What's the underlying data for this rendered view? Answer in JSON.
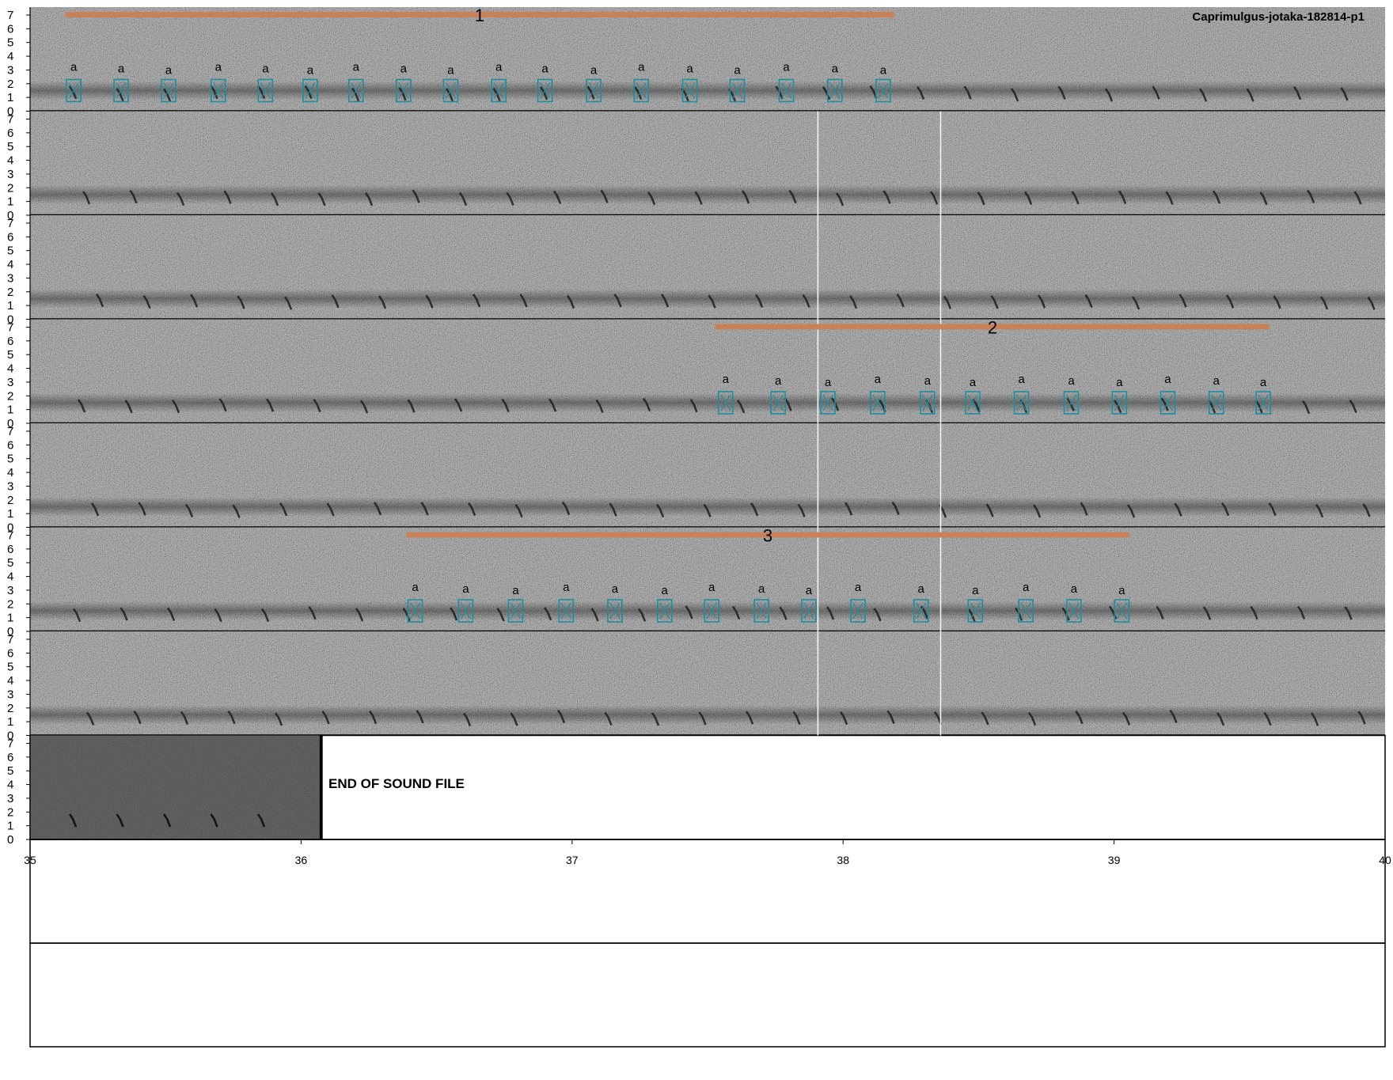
{
  "title": "Caprimulgus-jotaka-182814-p1",
  "end_label": "END OF SOUND FILE",
  "colors": {
    "sequence_bar": "#c98257",
    "syllable_box": "#1b8ea0",
    "cursor_line": "#f2f2f2",
    "spectrogram_bg": "#8c8c8c"
  },
  "frequency_ticks": [
    "0",
    "1",
    "2",
    "3",
    "4",
    "5",
    "6",
    "7"
  ],
  "time_ticks": [
    "35",
    "36",
    "37",
    "38",
    "39",
    "40"
  ],
  "annotations": [
    {
      "row": 0,
      "sequence": "1",
      "start": 0.0258,
      "end": 0.6378,
      "syllables": [
        {
          "label": "a",
          "t": 0.0322
        },
        {
          "label": "a",
          "t": 0.0672
        },
        {
          "label": "a",
          "t": 0.1022
        },
        {
          "label": "a",
          "t": 0.1389
        },
        {
          "label": "a",
          "t": 0.1737
        },
        {
          "label": "a",
          "t": 0.2067
        },
        {
          "label": "a",
          "t": 0.2405
        },
        {
          "label": "a",
          "t": 0.2756
        },
        {
          "label": "a",
          "t": 0.3104
        },
        {
          "label": "a",
          "t": 0.3459
        },
        {
          "label": "a",
          "t": 0.38
        },
        {
          "label": "a",
          "t": 0.4159
        },
        {
          "label": "a",
          "t": 0.4511
        },
        {
          "label": "a",
          "t": 0.4869
        },
        {
          "label": "a",
          "t": 0.5219
        },
        {
          "label": "a",
          "t": 0.5581
        },
        {
          "label": "a",
          "t": 0.5939
        },
        {
          "label": "a",
          "t": 0.6296
        }
      ]
    },
    {
      "row": 3,
      "sequence": "2",
      "start": 0.5058,
      "end": 0.9147,
      "syllables": [
        {
          "label": "a",
          "t": 0.5133
        },
        {
          "label": "a",
          "t": 0.5521
        },
        {
          "label": "a",
          "t": 0.5888
        },
        {
          "label": "a",
          "t": 0.6255
        },
        {
          "label": "a",
          "t": 0.6623
        },
        {
          "label": "a",
          "t": 0.6956
        },
        {
          "label": "a",
          "t": 0.7316
        },
        {
          "label": "a",
          "t": 0.7684
        },
        {
          "label": "a",
          "t": 0.8039
        },
        {
          "label": "a",
          "t": 0.8396
        },
        {
          "label": "a",
          "t": 0.8754
        },
        {
          "label": "a",
          "t": 0.9101
        }
      ]
    },
    {
      "row": 5,
      "sequence": "3",
      "start": 0.2776,
      "end": 0.8112,
      "syllables": [
        {
          "label": "a",
          "t": 0.2842
        },
        {
          "label": "a",
          "t": 0.3215
        },
        {
          "label": "a",
          "t": 0.3583
        },
        {
          "label": "a",
          "t": 0.3956
        },
        {
          "label": "a",
          "t": 0.4316
        },
        {
          "label": "a",
          "t": 0.4683
        },
        {
          "label": "a",
          "t": 0.503
        },
        {
          "label": "a",
          "t": 0.5398
        },
        {
          "label": "a",
          "t": 0.5747
        },
        {
          "label": "a",
          "t": 0.611
        },
        {
          "label": "a",
          "t": 0.6575
        },
        {
          "label": "a",
          "t": 0.6976
        },
        {
          "label": "a",
          "t": 0.7349
        },
        {
          "label": "a",
          "t": 0.7704
        },
        {
          "label": "a",
          "t": 0.8057
        }
      ]
    }
  ],
  "cursor_lines": [
    0.5814,
    0.672
  ],
  "rows_with_cursor_lines": [
    1,
    2,
    3,
    4,
    5,
    6
  ],
  "rows_total": 8,
  "sound_file_end": 0.2136
}
